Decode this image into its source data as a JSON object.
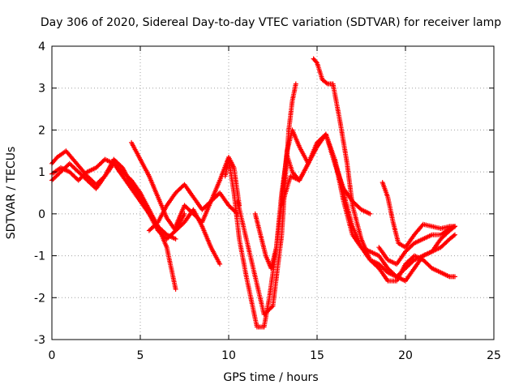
{
  "chart_data": {
    "type": "scatter",
    "title": "Day 306 of 2020, Sidereal Day-to-day VTEC variation (SDTVAR) for receiver lamp",
    "xlabel": "GPS time / hours",
    "ylabel": "SDTVAR / TECUs",
    "xlim": [
      0,
      25
    ],
    "ylim": [
      -3,
      4
    ],
    "xticks": [
      "0",
      "5",
      "10",
      "15",
      "20",
      "25"
    ],
    "yticks": [
      "-3",
      "-2",
      "-1",
      "0",
      "1",
      "2",
      "3",
      "4"
    ],
    "grid": true,
    "marker": "+",
    "color": "#ff0000",
    "series": [
      {
        "x": [
          0.0,
          0.3,
          0.8,
          1.2,
          1.6,
          2.0,
          2.5,
          3.0,
          3.5,
          4.0,
          4.5,
          5.0,
          5.5,
          6.0,
          6.5,
          7.0
        ],
        "y": [
          1.2,
          1.35,
          1.5,
          1.3,
          1.1,
          0.9,
          0.7,
          0.9,
          1.2,
          1.0,
          0.8,
          0.5,
          0.1,
          -0.3,
          -0.8,
          -1.8
        ]
      },
      {
        "x": [
          0.0,
          0.5,
          1.0,
          1.5,
          2.0,
          2.5,
          3.0,
          3.5,
          4.0,
          4.5,
          5.0,
          5.5,
          6.0,
          6.5,
          7.0
        ],
        "y": [
          0.8,
          1.0,
          1.2,
          1.0,
          0.8,
          0.6,
          0.9,
          1.3,
          1.1,
          0.7,
          0.4,
          0.0,
          -0.3,
          -0.5,
          -0.6
        ]
      },
      {
        "x": [
          0.0,
          0.5,
          1.0,
          1.5,
          2.0,
          2.5,
          3.0,
          3.5,
          4.0,
          4.5,
          5.0,
          5.5,
          6.0,
          6.5,
          7.0,
          7.5
        ],
        "y": [
          0.95,
          1.1,
          1.0,
          0.8,
          1.0,
          1.1,
          1.3,
          1.2,
          0.9,
          0.6,
          0.3,
          0.0,
          -0.4,
          -0.6,
          -0.4,
          0.0
        ]
      },
      {
        "x": [
          4.5,
          5.0,
          5.5,
          6.0,
          6.5,
          7.0,
          7.5,
          8.0,
          8.5,
          9.0,
          9.5
        ],
        "y": [
          1.7,
          1.3,
          0.9,
          0.4,
          -0.1,
          -0.4,
          -0.2,
          0.1,
          -0.3,
          -0.8,
          -1.2
        ]
      },
      {
        "x": [
          5.5,
          6.0,
          6.5,
          7.0,
          7.5,
          8.0,
          8.5,
          9.0,
          9.5,
          10.0,
          10.3,
          10.6
        ],
        "y": [
          -0.4,
          -0.2,
          0.2,
          0.5,
          0.7,
          0.4,
          0.1,
          0.3,
          0.8,
          1.35,
          1.1,
          0.2
        ]
      },
      {
        "x": [
          7.0,
          7.5,
          8.0,
          8.5,
          9.0,
          9.5,
          10.0,
          10.5
        ],
        "y": [
          -0.3,
          0.2,
          0.0,
          -0.2,
          0.3,
          0.5,
          0.2,
          0.0
        ]
      },
      {
        "x": [
          9.8,
          10.0,
          10.3,
          10.6,
          11.0,
          11.3,
          11.6,
          12.0,
          12.3,
          12.7,
          13.0,
          13.3,
          13.6,
          14.0,
          14.5
        ],
        "y": [
          0.9,
          1.3,
          0.5,
          -0.6,
          -1.5,
          -2.1,
          -2.7,
          -2.7,
          -2.0,
          -0.8,
          0.5,
          1.4,
          1.0,
          0.8,
          1.2
        ]
      },
      {
        "x": [
          10.5,
          11.0,
          11.5,
          12.0,
          12.5,
          13.0,
          13.2,
          13.4,
          13.6,
          13.8
        ],
        "y": [
          0.3,
          -0.6,
          -1.5,
          -2.4,
          -2.2,
          -0.5,
          0.8,
          2.0,
          2.7,
          3.1
        ]
      },
      {
        "x": [
          11.5,
          11.8,
          12.1,
          12.4,
          12.7,
          13.0,
          13.3,
          13.6,
          14.0,
          14.5,
          15.0,
          15.5,
          16.0,
          16.5,
          17.0,
          17.5,
          18.0
        ],
        "y": [
          0.0,
          -0.5,
          -1.0,
          -1.3,
          -0.8,
          0.3,
          1.5,
          2.0,
          1.6,
          1.2,
          1.6,
          1.9,
          1.2,
          0.6,
          0.3,
          0.1,
          0.0
        ]
      },
      {
        "x": [
          13.0,
          13.5,
          14.0,
          14.5,
          15.0,
          15.5,
          16.0,
          16.5,
          17.0,
          17.5,
          18.0,
          18.5,
          19.0,
          19.5,
          20.0,
          20.5,
          21.0,
          21.5,
          22.0,
          22.5,
          22.8
        ],
        "y": [
          0.2,
          0.9,
          0.8,
          1.2,
          1.7,
          1.9,
          1.3,
          0.3,
          -0.5,
          -0.8,
          -0.9,
          -1.0,
          -1.3,
          -1.5,
          -1.6,
          -1.3,
          -1.0,
          -0.9,
          -0.6,
          -0.4,
          -0.3
        ]
      },
      {
        "x": [
          14.8,
          15.0,
          15.3,
          15.6,
          15.9,
          16.3,
          16.7,
          17.0,
          17.5,
          18.0,
          18.5,
          19.0,
          19.5,
          20.0,
          20.5,
          21.0,
          21.5,
          22.0,
          22.5,
          22.8
        ],
        "y": [
          3.7,
          3.6,
          3.2,
          3.1,
          3.1,
          2.2,
          1.2,
          0.2,
          -0.6,
          -1.1,
          -1.2,
          -1.4,
          -1.5,
          -1.3,
          -1.1,
          -1.0,
          -0.9,
          -0.8,
          -0.6,
          -0.5
        ]
      },
      {
        "x": [
          16.0,
          16.5,
          17.0,
          17.5,
          18.0,
          18.5,
          19.0,
          19.5,
          20.0,
          20.5,
          21.0,
          21.5,
          22.0,
          22.5,
          22.8
        ],
        "y": [
          1.3,
          0.5,
          -0.3,
          -0.8,
          -1.1,
          -1.3,
          -1.6,
          -1.6,
          -1.2,
          -1.0,
          -1.1,
          -1.3,
          -1.4,
          -1.5,
          -1.5
        ]
      },
      {
        "x": [
          18.7,
          19.0,
          19.3,
          19.6,
          20.0,
          20.5,
          21.0,
          21.5,
          22.0,
          22.5,
          22.8
        ],
        "y": [
          0.75,
          0.4,
          -0.2,
          -0.7,
          -0.8,
          -0.5,
          -0.25,
          -0.3,
          -0.35,
          -0.3,
          -0.3
        ]
      },
      {
        "x": [
          18.5,
          19.0,
          19.5,
          20.0,
          20.5,
          21.0,
          21.5,
          22.0,
          22.5,
          22.8
        ],
        "y": [
          -0.8,
          -1.1,
          -1.2,
          -0.9,
          -0.7,
          -0.6,
          -0.5,
          -0.5,
          -0.35,
          -0.3
        ]
      }
    ]
  }
}
